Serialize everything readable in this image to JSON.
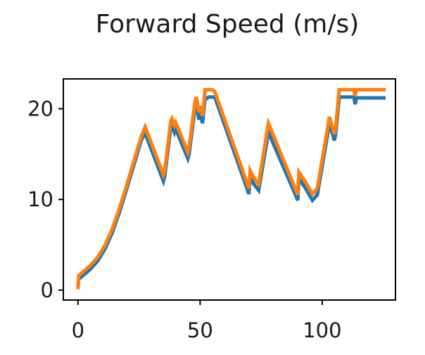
{
  "chart_data": {
    "type": "line",
    "title": "Forward Speed (m/s)",
    "xlabel": "",
    "ylabel": "",
    "xlim": [
      -6,
      130
    ],
    "ylim": [
      -1.1,
      23.3
    ],
    "xticks": [
      0,
      50,
      100
    ],
    "yticks": [
      0,
      10,
      20
    ],
    "xtick_labels": [
      "0",
      "50",
      "100"
    ],
    "ytick_labels": [
      "0",
      "10",
      "20"
    ],
    "grid": false,
    "legend": "none",
    "series": [
      {
        "name": "series-1",
        "color": "#1f77b4",
        "x": [
          0,
          0.3,
          2,
          5,
          8,
          11,
          14,
          17,
          20,
          23,
          26,
          27.5,
          35,
          35.5,
          38,
          38.5,
          39.5,
          40,
          45,
          45.5,
          48,
          48.5,
          49.5,
          50,
          51,
          51.5,
          52,
          53.5,
          56,
          70,
          70.5,
          72,
          74,
          78,
          90,
          90.5,
          93,
          96,
          98,
          103,
          105,
          105.5,
          107,
          113,
          113.5,
          114,
          126
        ],
        "y": [
          0.5,
          1.2,
          1.6,
          2.3,
          3.2,
          4.5,
          6.3,
          8.6,
          11.2,
          13.9,
          16.6,
          17.3,
          12.0,
          12.5,
          17.9,
          18.2,
          17.4,
          17.8,
          14.5,
          15.0,
          20.2,
          20.7,
          18.8,
          19.6,
          18.4,
          19.8,
          21.0,
          21.3,
          21.3,
          10.6,
          12.5,
          11.7,
          11.0,
          17.4,
          9.9,
          12.3,
          11.3,
          9.9,
          10.5,
          18.4,
          16.5,
          17.2,
          21.3,
          21.3,
          20.5,
          21.2,
          21.2
        ]
      },
      {
        "name": "series-2",
        "color": "#ff7f0e",
        "x": [
          0,
          0.3,
          2,
          5,
          8,
          11,
          14,
          17,
          20,
          23,
          26,
          27.5,
          35,
          35.5,
          38,
          38.5,
          39.5,
          40,
          45,
          45.5,
          48,
          48.5,
          49.5,
          50,
          51,
          51.5,
          52,
          55,
          56,
          70,
          70.5,
          72,
          74,
          78,
          90,
          90.5,
          93,
          96,
          98,
          103,
          105,
          105.5,
          107,
          113,
          113.5,
          114,
          126
        ],
        "y": [
          0.1,
          1.6,
          2.0,
          2.7,
          3.6,
          4.9,
          6.7,
          9.0,
          11.6,
          14.3,
          17.0,
          18.0,
          12.7,
          13.1,
          18.6,
          18.9,
          18.2,
          18.5,
          15.2,
          15.7,
          20.9,
          21.3,
          19.6,
          20.3,
          19.2,
          20.5,
          22.1,
          22.1,
          21.9,
          11.2,
          13.2,
          12.4,
          11.7,
          18.4,
          10.5,
          13.0,
          12.0,
          10.6,
          11.2,
          19.1,
          17.2,
          17.9,
          22.1,
          22.1,
          21.4,
          22.1,
          22.1
        ]
      }
    ]
  }
}
